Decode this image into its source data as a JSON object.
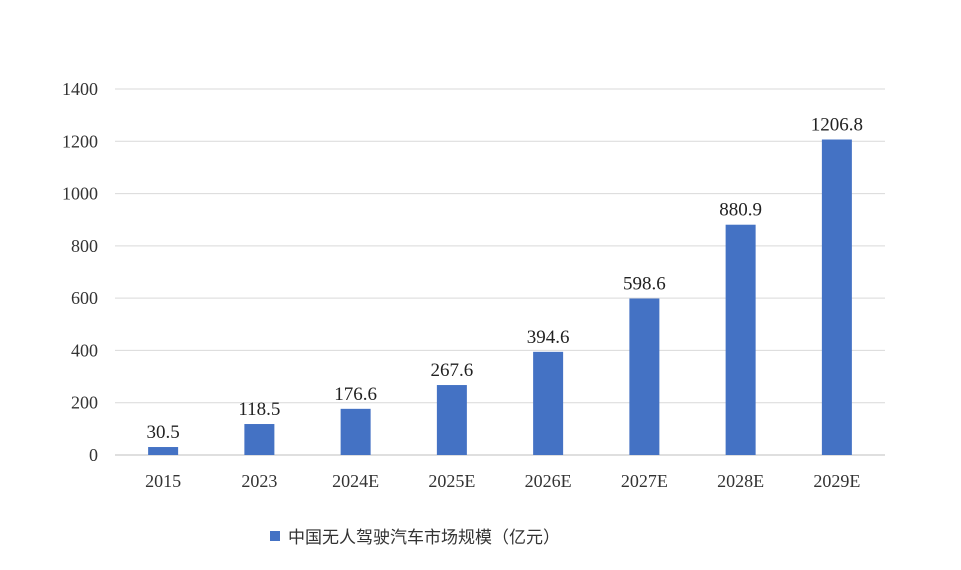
{
  "chart_data": {
    "type": "bar",
    "categories": [
      "2015",
      "2023",
      "2024E",
      "2025E",
      "2026E",
      "2027E",
      "2028E",
      "2029E"
    ],
    "series": [
      {
        "name": "中国无人驾驶汽车市场规模（亿元）",
        "values": [
          30.5,
          118.5,
          176.6,
          267.6,
          394.6,
          598.6,
          880.9,
          1206.8
        ],
        "color": "#4472C4"
      }
    ],
    "data_labels": [
      "30.5",
      "118.5",
      "176.6",
      "267.6",
      "394.6",
      "598.6",
      "880.9",
      "1206.8"
    ],
    "y_ticks": [
      0,
      200,
      400,
      600,
      800,
      1000,
      1200,
      1400
    ],
    "ylim": [
      0,
      1400
    ],
    "grid": true,
    "legend": "bottom-center"
  }
}
